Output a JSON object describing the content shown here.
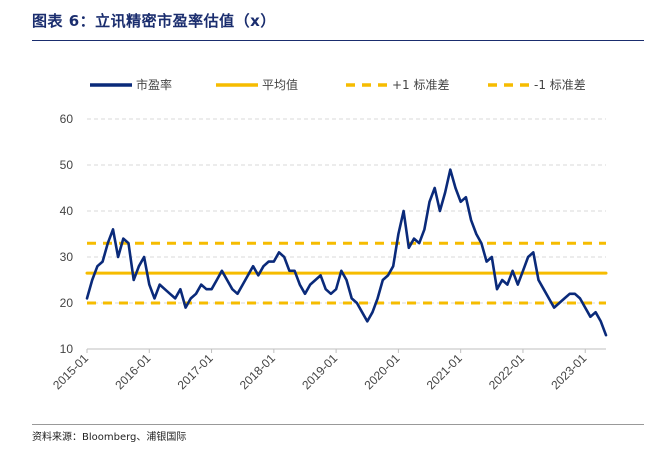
{
  "header": {
    "title": "图表 6：立讯精密市盈率估值（x）"
  },
  "footer": {
    "source": "资料来源：Bloomberg、浦银国际"
  },
  "chart_data": {
    "type": "line",
    "title": "图表 6：立讯精密市盈率估值（x）",
    "xlabel": "",
    "ylabel": "",
    "ylim": [
      10,
      60
    ],
    "yticks": [
      "10",
      "20",
      "30",
      "40",
      "50",
      "60"
    ],
    "xticks": [
      "2015-01",
      "2016-01",
      "2017-01",
      "2018-01",
      "2019-01",
      "2020-01",
      "2021-01",
      "2022-01",
      "2023-01"
    ],
    "xrange": [
      "2015-01",
      "2023-05"
    ],
    "grid": "horizontal dashed",
    "legend_position": "top",
    "colors": {
      "pe": "#0a2a7a",
      "mean": "#f6bc00",
      "band": "#f6bc00"
    },
    "series": [
      {
        "name": "市盈率",
        "style": "solid",
        "x": [
          "2015-01",
          "2015-02",
          "2015-03",
          "2015-04",
          "2015-05",
          "2015-06",
          "2015-07",
          "2015-08",
          "2015-09",
          "2015-10",
          "2015-11",
          "2015-12",
          "2016-01",
          "2016-02",
          "2016-03",
          "2016-04",
          "2016-05",
          "2016-06",
          "2016-07",
          "2016-08",
          "2016-09",
          "2016-10",
          "2016-11",
          "2016-12",
          "2017-01",
          "2017-02",
          "2017-03",
          "2017-04",
          "2017-05",
          "2017-06",
          "2017-07",
          "2017-08",
          "2017-09",
          "2017-10",
          "2017-11",
          "2017-12",
          "2018-01",
          "2018-02",
          "2018-03",
          "2018-04",
          "2018-05",
          "2018-06",
          "2018-07",
          "2018-08",
          "2018-09",
          "2018-10",
          "2018-11",
          "2018-12",
          "2019-01",
          "2019-02",
          "2019-03",
          "2019-04",
          "2019-05",
          "2019-06",
          "2019-07",
          "2019-08",
          "2019-09",
          "2019-10",
          "2019-11",
          "2019-12",
          "2020-01",
          "2020-02",
          "2020-03",
          "2020-04",
          "2020-05",
          "2020-06",
          "2020-07",
          "2020-08",
          "2020-09",
          "2020-10",
          "2020-11",
          "2020-12",
          "2021-01",
          "2021-02",
          "2021-03",
          "2021-04",
          "2021-05",
          "2021-06",
          "2021-07",
          "2021-08",
          "2021-09",
          "2021-10",
          "2021-11",
          "2021-12",
          "2022-01",
          "2022-02",
          "2022-03",
          "2022-04",
          "2022-05",
          "2022-06",
          "2022-07",
          "2022-08",
          "2022-09",
          "2022-10",
          "2022-11",
          "2022-12",
          "2023-01",
          "2023-02",
          "2023-03",
          "2023-04",
          "2023-05"
        ],
        "values": [
          21,
          25,
          28,
          29,
          33,
          36,
          30,
          34,
          33,
          25,
          28,
          30,
          24,
          21,
          24,
          23,
          22,
          21,
          23,
          19,
          21,
          22,
          24,
          23,
          23,
          25,
          27,
          25,
          23,
          22,
          24,
          26,
          28,
          26,
          28,
          29,
          29,
          31,
          30,
          27,
          27,
          24,
          22,
          24,
          25,
          26,
          23,
          22,
          23,
          27,
          25,
          21,
          20,
          18,
          16,
          18,
          21,
          25,
          26,
          28,
          35,
          40,
          32,
          34,
          33,
          36,
          42,
          45,
          40,
          44,
          49,
          45,
          42,
          43,
          38,
          35,
          33,
          29,
          30,
          23,
          25,
          24,
          27,
          24,
          27,
          30,
          31,
          25,
          23,
          21,
          19,
          20,
          21,
          22,
          22,
          21,
          19,
          17,
          18,
          16,
          13
        ]
      },
      {
        "name": "平均值",
        "style": "solid",
        "x": [
          "2015-01",
          "2023-05"
        ],
        "values": [
          26.5,
          26.5
        ]
      },
      {
        "name": "+1 标准差",
        "style": "dashed",
        "x": [
          "2015-01",
          "2023-05"
        ],
        "values": [
          33,
          33
        ]
      },
      {
        "name": "-1 标准差",
        "style": "dashed",
        "x": [
          "2015-01",
          "2023-05"
        ],
        "values": [
          20,
          20
        ]
      }
    ]
  }
}
